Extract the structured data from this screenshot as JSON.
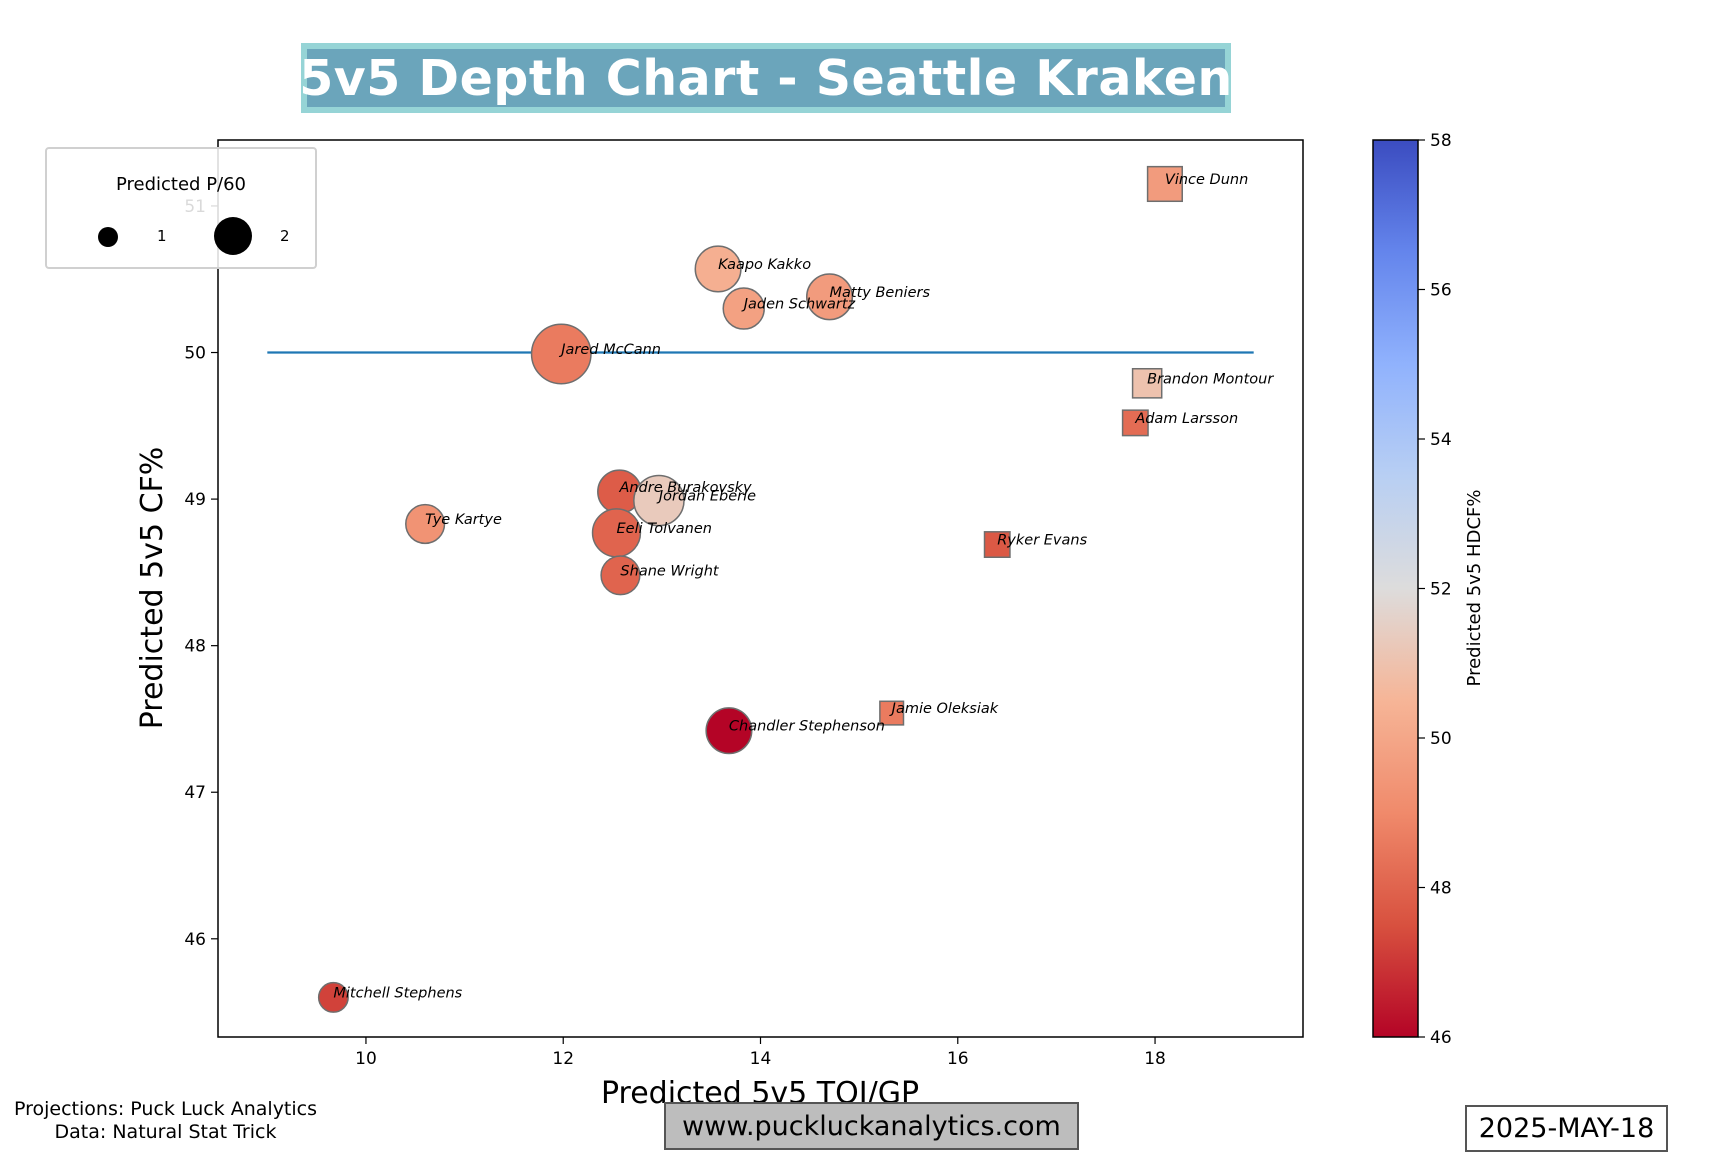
{
  "title": "5v5 Depth Chart - Seattle Kraken",
  "footer": {
    "projections": "Projections: Puck Luck Analytics",
    "data_source": "Data: Natural Stat Trick",
    "url": "www.puckluckanalytics.com",
    "date": "2025-MAY-18"
  },
  "legend": {
    "title": "Predicted P/60",
    "small_label": "1",
    "large_label": "2"
  },
  "chart_data": {
    "type": "scatter",
    "xlabel": "Predicted 5v5 TOI/GP",
    "ylabel": "Predicted 5v5 CF%",
    "colorbar_label": "Predicted 5v5 HDCF%",
    "xlim": [
      8.5,
      19.5
    ],
    "ylim": [
      45.33,
      51.45
    ],
    "xticks": [
      10,
      12,
      14,
      16,
      18
    ],
    "yticks": [
      46,
      47,
      48,
      49,
      50,
      51
    ],
    "colorbar_range": [
      46,
      58
    ],
    "colorbar_ticks": [
      46,
      48,
      50,
      52,
      54,
      56,
      58
    ],
    "colormap": "coolwarm_r",
    "reference_line": {
      "y": 50,
      "x_from": 9,
      "x_to": 19,
      "color": "#1f77b4"
    },
    "grid": false,
    "legend_position": "upper-left",
    "marker_legend": {
      "circle": "forward",
      "square": "defense"
    },
    "players": [
      {
        "name": "Vince Dunn",
        "x": 18.1,
        "y": 51.15,
        "hdcf": 49.6,
        "p60": 1.1,
        "shape": "square"
      },
      {
        "name": "Kaapo Kakko",
        "x": 13.57,
        "y": 50.57,
        "hdcf": 50.3,
        "p60": 1.2,
        "shape": "circle"
      },
      {
        "name": "Matty Beniers",
        "x": 14.7,
        "y": 50.38,
        "hdcf": 49.6,
        "p60": 1.2,
        "shape": "circle"
      },
      {
        "name": "Jaden Schwartz",
        "x": 13.83,
        "y": 50.3,
        "hdcf": 49.8,
        "p60": 1.0,
        "shape": "circle"
      },
      {
        "name": "Jared McCann",
        "x": 11.98,
        "y": 49.99,
        "hdcf": 48.6,
        "p60": 1.8,
        "shape": "circle"
      },
      {
        "name": "Brandon Montour",
        "x": 17.92,
        "y": 49.79,
        "hdcf": 51.0,
        "p60": 0.8,
        "shape": "square"
      },
      {
        "name": "Adam Larsson",
        "x": 17.8,
        "y": 49.52,
        "hdcf": 48.2,
        "p60": 0.6,
        "shape": "square"
      },
      {
        "name": "Andre Burakovsky",
        "x": 12.57,
        "y": 49.05,
        "hdcf": 47.8,
        "p60": 1.1,
        "shape": "circle"
      },
      {
        "name": "Jordan Eberle",
        "x": 12.97,
        "y": 48.99,
        "hdcf": 51.3,
        "p60": 1.4,
        "shape": "circle"
      },
      {
        "name": "Tye Kartye",
        "x": 10.6,
        "y": 48.83,
        "hdcf": 49.3,
        "p60": 0.9,
        "shape": "circle"
      },
      {
        "name": "Eeli Tolvanen",
        "x": 12.54,
        "y": 48.77,
        "hdcf": 48.0,
        "p60": 1.3,
        "shape": "circle"
      },
      {
        "name": "Ryker Evans",
        "x": 16.4,
        "y": 48.69,
        "hdcf": 47.7,
        "p60": 0.6,
        "shape": "square"
      },
      {
        "name": "Shane Wright",
        "x": 12.58,
        "y": 48.48,
        "hdcf": 48.0,
        "p60": 0.9,
        "shape": "circle"
      },
      {
        "name": "Jamie Oleksiak",
        "x": 15.33,
        "y": 47.54,
        "hdcf": 48.6,
        "p60": 0.5,
        "shape": "square"
      },
      {
        "name": "Chandler Stephenson",
        "x": 13.68,
        "y": 47.42,
        "hdcf": 46.0,
        "p60": 1.2,
        "shape": "circle"
      },
      {
        "name": "Mitchell Stephens",
        "x": 9.67,
        "y": 45.6,
        "hdcf": 47.2,
        "p60": 0.5,
        "shape": "circle"
      }
    ]
  }
}
